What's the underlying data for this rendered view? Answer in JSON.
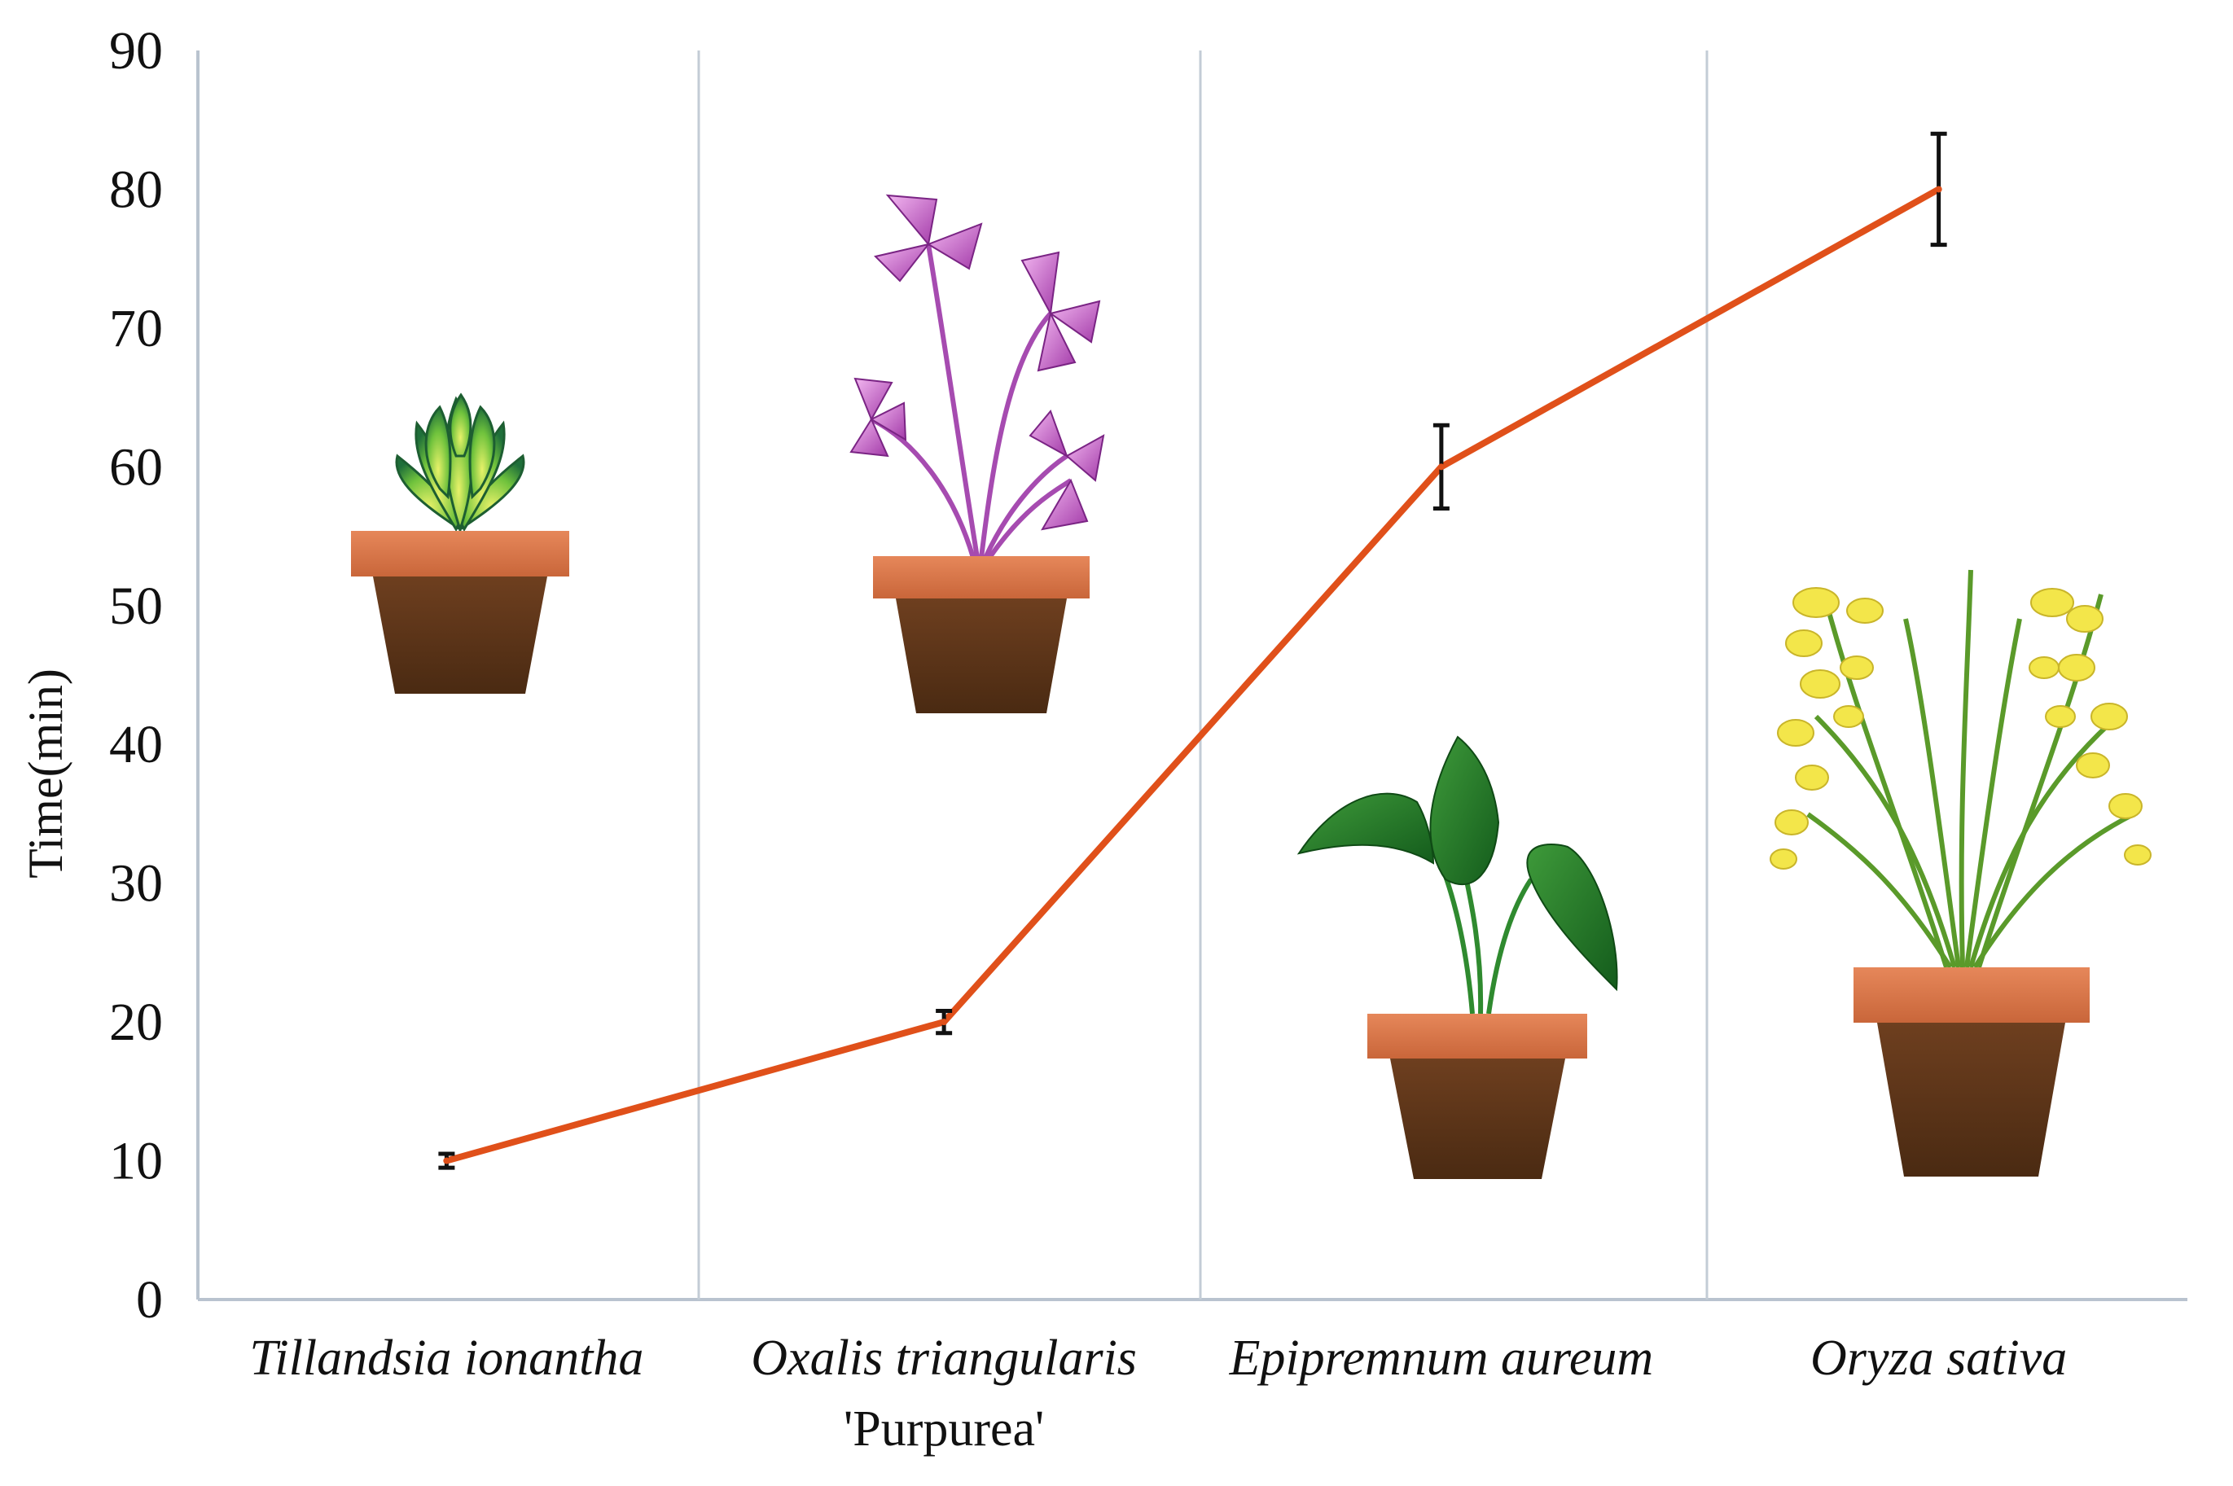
{
  "chart_data": {
    "type": "line",
    "title": "",
    "xlabel": "",
    "ylabel": "Time(min)",
    "ylim": [
      0,
      90
    ],
    "yticks": [
      0,
      10,
      20,
      30,
      40,
      50,
      60,
      70,
      80,
      90
    ],
    "grid": "vertical separators between categories",
    "legend": "none",
    "categories": [
      {
        "name": "Tillandsia ionantha",
        "sub": ""
      },
      {
        "name": "Oxalis triangularis",
        "sub": "'Purpurea'"
      },
      {
        "name": "Epipremnum aureum",
        "sub": ""
      },
      {
        "name": "Oryza sativa",
        "sub": ""
      }
    ],
    "series": [
      {
        "values": [
          10,
          20,
          60,
          80
        ],
        "errors": [
          0.5,
          0.8,
          3,
          4
        ],
        "color": "#e0501a"
      }
    ],
    "illustrations": [
      {
        "category": "Tillandsia ionantha",
        "icon": "tillandsia-plant-pot-icon"
      },
      {
        "category": "Oxalis triangularis",
        "icon": "purple-oxalis-plant-pot-icon"
      },
      {
        "category": "Epipremnum aureum",
        "icon": "pothos-plant-pot-icon"
      },
      {
        "category": "Oryza sativa",
        "icon": "rice-plant-pot-icon"
      }
    ],
    "colors": {
      "axis": "#b9c3cf",
      "separator": "#c3ccd6",
      "pot_rim": "#d9774a",
      "pot_body": "#5c3418",
      "error_bar": "#111111"
    }
  }
}
